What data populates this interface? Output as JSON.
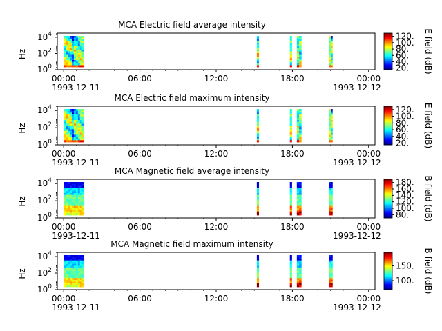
{
  "figure": {
    "background": "#ffffff"
  },
  "chart_data": [
    {
      "type": "heatmap",
      "title": "MCA  Electric field average intensity",
      "ylabel": "Hz",
      "yscale": "log",
      "y_ticks": [
        {
          "base": "10",
          "exp": "0"
        },
        {
          "base": "10",
          "exp": "2"
        },
        {
          "base": "10",
          "exp": "4"
        }
      ],
      "x_ticks": [
        "00:00",
        "06:00",
        "12:00",
        "18:00",
        "00:00"
      ],
      "x_dates": [
        "1993-12-11",
        "1993-12-12"
      ],
      "xlim_hours": [
        -0.5,
        24.5
      ],
      "colorbar": {
        "label": "E field (dB)",
        "ticks": [
          "20.",
          "40.",
          "60.",
          "80.",
          "100.",
          "120."
        ],
        "range": [
          15,
          130
        ]
      },
      "segments_hours": [
        [
          0.0,
          1.6
        ],
        [
          15.2,
          15.35
        ],
        [
          17.8,
          17.95
        ],
        [
          18.35,
          18.7
        ],
        [
          20.9,
          21.15
        ]
      ],
      "profile": "electric"
    },
    {
      "type": "heatmap",
      "title": "MCA  Electric field maximum intensity",
      "ylabel": "Hz",
      "yscale": "log",
      "y_ticks": [
        {
          "base": "10",
          "exp": "0"
        },
        {
          "base": "10",
          "exp": "2"
        },
        {
          "base": "10",
          "exp": "4"
        }
      ],
      "x_ticks": [
        "00:00",
        "06:00",
        "12:00",
        "18:00",
        "00:00"
      ],
      "x_dates": [
        "1993-12-11",
        "1993-12-12"
      ],
      "xlim_hours": [
        -0.5,
        24.5
      ],
      "colorbar": {
        "label": "E field (dB)",
        "ticks": [
          "20.",
          "40.",
          "60.",
          "80.",
          "100.",
          "120."
        ],
        "range": [
          15,
          130
        ]
      },
      "segments_hours": [
        [
          0.0,
          1.6
        ],
        [
          15.2,
          15.35
        ],
        [
          17.8,
          17.95
        ],
        [
          18.35,
          18.7
        ],
        [
          20.9,
          21.15
        ]
      ],
      "profile": "electric"
    },
    {
      "type": "heatmap",
      "title": "MCA  Magnetic field average intensity",
      "ylabel": "Hz",
      "yscale": "log",
      "y_ticks": [
        {
          "base": "10",
          "exp": "0"
        },
        {
          "base": "10",
          "exp": "2"
        },
        {
          "base": "10",
          "exp": "4"
        }
      ],
      "x_ticks": [
        "00:00",
        "06:00",
        "12:00",
        "18:00",
        "00:00"
      ],
      "x_dates": [
        "1993-12-11",
        "1993-12-12"
      ],
      "xlim_hours": [
        -0.5,
        24.5
      ],
      "colorbar": {
        "label": "B field (dB)",
        "ticks": [
          "80.",
          "100.",
          "120.",
          "140.",
          "160.",
          "180."
        ],
        "range": [
          70,
          190
        ]
      },
      "segments_hours": [
        [
          0.0,
          1.6
        ],
        [
          15.2,
          15.35
        ],
        [
          17.8,
          17.95
        ],
        [
          18.35,
          18.7
        ],
        [
          20.9,
          21.15
        ]
      ],
      "profile": "magnetic"
    },
    {
      "type": "heatmap",
      "title": "MCA  Magnetic field maximum intensity",
      "ylabel": "Hz",
      "yscale": "log",
      "y_ticks": [
        {
          "base": "10",
          "exp": "0"
        },
        {
          "base": "10",
          "exp": "2"
        },
        {
          "base": "10",
          "exp": "4"
        }
      ],
      "x_ticks": [
        "00:00",
        "06:00",
        "12:00",
        "18:00",
        "00:00"
      ],
      "x_dates": [
        "1993-12-11",
        "1993-12-12"
      ],
      "xlim_hours": [
        -0.5,
        24.5
      ],
      "colorbar": {
        "label": "B field (dB)",
        "ticks": [
          "100.",
          "150."
        ],
        "range": [
          70,
          195
        ]
      },
      "segments_hours": [
        [
          0.0,
          1.6
        ],
        [
          15.2,
          15.35
        ],
        [
          17.8,
          17.95
        ],
        [
          18.35,
          18.7
        ],
        [
          20.9,
          21.15
        ]
      ],
      "profile": "magnetic"
    }
  ]
}
